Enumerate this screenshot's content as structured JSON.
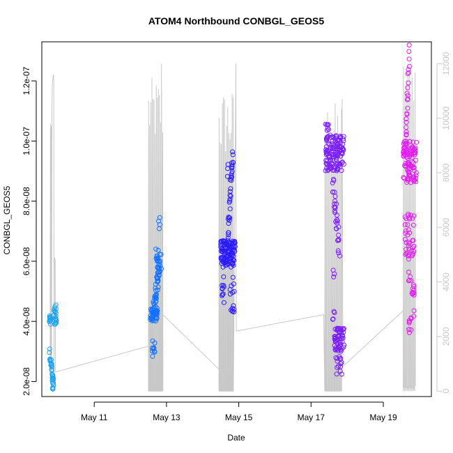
{
  "chart_data": {
    "type": "scatter",
    "title": "ATOM4 Northbound CONBGL_GEOS5",
    "xlabel": "Date",
    "ylabel": "CONBGL_GEOS5",
    "x_ticks": [
      "May 11",
      "May 13",
      "May 15",
      "May 17",
      "May 19"
    ],
    "y_ticks": [
      "2.0e-08",
      "4.0e-08",
      "6.0e-08",
      "8.0e-08",
      "1.0e-07",
      "1.2e-07"
    ],
    "y2_ticks": [
      "0",
      "2000",
      "4000",
      "6000",
      "8000",
      "10000",
      "12000"
    ],
    "xlim_days": [
      "May 9 13:00",
      "May 20 08:00"
    ],
    "ylim": [
      1.5e-08,
      1.33e-07
    ],
    "y2lim": [
      -200,
      12800
    ],
    "marker": "open circle",
    "color_scale": [
      "#1ba3f0",
      "#ff1fc8"
    ],
    "secondary_series": {
      "name": "",
      "color": "#c8c8c8",
      "type": "line"
    },
    "flights": [
      {
        "date": "May 10",
        "x_range": [
          9.92,
          9.96
        ],
        "y_range": [
          1.6e-08,
          4.6e-08
        ],
        "color": "#1ba3f0",
        "altitude_max": 11600
      },
      {
        "date": "May 12",
        "x_range": [
          12.5,
          12.83
        ],
        "y_range": [
          2.8e-08,
          7.6e-08
        ],
        "color": "#1471ff",
        "altitude_max": 12000
      },
      {
        "date": "May 14",
        "x_range": [
          14.5,
          14.85
        ],
        "y_range": [
          4.2e-08,
          9.8e-08
        ],
        "color": "#2a1bff",
        "altitude_max": 12000
      },
      {
        "date": "May 17",
        "x_range": [
          17.38,
          17.85
        ],
        "y_range": [
          2.2e-08,
          1.08e-07
        ],
        "color": "#7a1cff",
        "altitude_max": 10700
      },
      {
        "date": "May 19",
        "x_range": [
          19.55,
          19.9
        ],
        "y_range": [
          3.3e-08,
          1.3e-07
        ],
        "color": "#e01cf0",
        "altitude_max": 12200
      }
    ]
  }
}
